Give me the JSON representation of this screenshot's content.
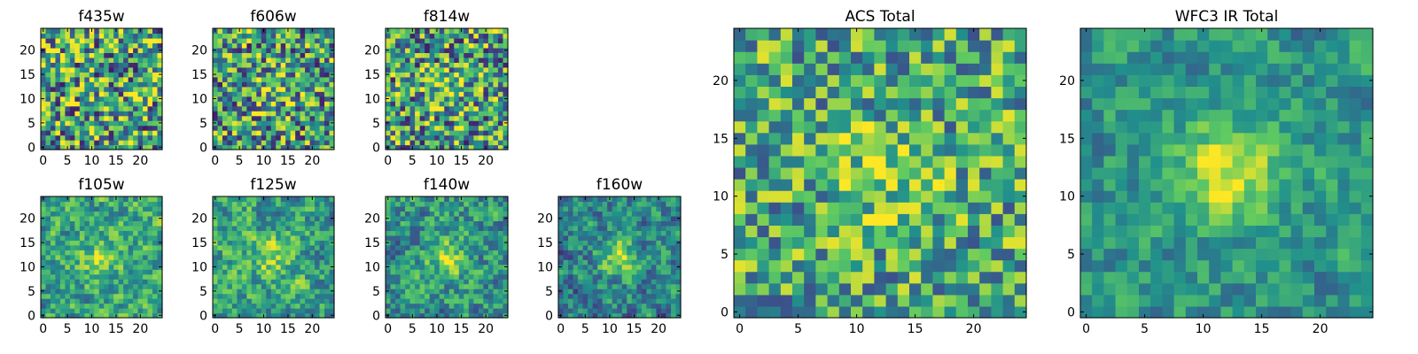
{
  "figure_caption": "",
  "colormap": [
    "#440154",
    "#3b528b",
    "#21918c",
    "#5ec962",
    "#fde725"
  ],
  "chart_data": [
    {
      "type": "heatmap",
      "title": "f435w",
      "grid_size": 25,
      "xlim": [
        -0.5,
        24.5
      ],
      "ylim": [
        -0.5,
        24.5
      ],
      "x_ticks": [
        0,
        5,
        10,
        15,
        20
      ],
      "y_ticks": [
        0,
        5,
        10,
        15,
        20
      ],
      "pattern": "noise",
      "seed": 11,
      "peak": 0.0,
      "noise": 0.62,
      "base": 0.58
    },
    {
      "type": "heatmap",
      "title": "f606w",
      "grid_size": 25,
      "xlim": [
        -0.5,
        24.5
      ],
      "ylim": [
        -0.5,
        24.5
      ],
      "x_ticks": [
        0,
        5,
        10,
        15,
        20
      ],
      "y_ticks": [
        0,
        5,
        10,
        15,
        20
      ],
      "pattern": "noise",
      "seed": 23,
      "peak": 0.18,
      "noise": 0.58,
      "base": 0.55
    },
    {
      "type": "heatmap",
      "title": "f814w",
      "grid_size": 25,
      "xlim": [
        -0.5,
        24.5
      ],
      "ylim": [
        -0.5,
        24.5
      ],
      "x_ticks": [
        0,
        5,
        10,
        15,
        20
      ],
      "y_ticks": [
        0,
        5,
        10,
        15,
        20
      ],
      "pattern": "noise",
      "seed": 37,
      "peak": 0.22,
      "noise": 0.58,
      "base": 0.55
    },
    {
      "type": "heatmap",
      "title": "f105w",
      "grid_size": 25,
      "xlim": [
        -0.5,
        24.5
      ],
      "ylim": [
        -0.5,
        24.5
      ],
      "x_ticks": [
        0,
        5,
        10,
        15,
        20
      ],
      "y_ticks": [
        0,
        5,
        10,
        15,
        20
      ],
      "pattern": "smooth",
      "seed": 41,
      "peak": 0.25,
      "noise": 0.5,
      "base": 0.58
    },
    {
      "type": "heatmap",
      "title": "f125w",
      "grid_size": 25,
      "xlim": [
        -0.5,
        24.5
      ],
      "ylim": [
        -0.5,
        24.5
      ],
      "x_ticks": [
        0,
        5,
        10,
        15,
        20
      ],
      "y_ticks": [
        0,
        5,
        10,
        15,
        20
      ],
      "pattern": "smooth",
      "seed": 53,
      "peak": 0.22,
      "noise": 0.5,
      "base": 0.58
    },
    {
      "type": "heatmap",
      "title": "f140w",
      "grid_size": 25,
      "xlim": [
        -0.5,
        24.5
      ],
      "ylim": [
        -0.5,
        24.5
      ],
      "x_ticks": [
        0,
        5,
        10,
        15,
        20
      ],
      "y_ticks": [
        0,
        5,
        10,
        15,
        20
      ],
      "pattern": "smooth",
      "seed": 67,
      "peak": 0.3,
      "noise": 0.5,
      "base": 0.52
    },
    {
      "type": "heatmap",
      "title": "f160w",
      "grid_size": 25,
      "xlim": [
        -0.5,
        24.5
      ],
      "ylim": [
        -0.5,
        24.5
      ],
      "x_ticks": [
        0,
        5,
        10,
        15,
        20
      ],
      "y_ticks": [
        0,
        5,
        10,
        15,
        20
      ],
      "pattern": "smooth",
      "seed": 79,
      "peak": 0.4,
      "noise": 0.48,
      "base": 0.45
    },
    {
      "type": "heatmap",
      "title": "ACS Total",
      "grid_size": 25,
      "xlim": [
        -0.5,
        24.5
      ],
      "ylim": [
        -0.5,
        24.5
      ],
      "x_ticks": [
        0,
        5,
        10,
        15,
        20
      ],
      "y_ticks": [
        0,
        5,
        10,
        15,
        20
      ],
      "pattern": "noise",
      "seed": 97,
      "peak": 0.22,
      "noise": 0.45,
      "base": 0.6
    },
    {
      "type": "heatmap",
      "title": "WFC3 IR Total",
      "grid_size": 25,
      "xlim": [
        -0.5,
        24.5
      ],
      "ylim": [
        -0.5,
        24.5
      ],
      "x_ticks": [
        0,
        5,
        10,
        15,
        20
      ],
      "y_ticks": [
        0,
        5,
        10,
        15,
        20
      ],
      "pattern": "smooth",
      "seed": 113,
      "peak": 0.42,
      "noise": 0.36,
      "base": 0.52
    }
  ]
}
